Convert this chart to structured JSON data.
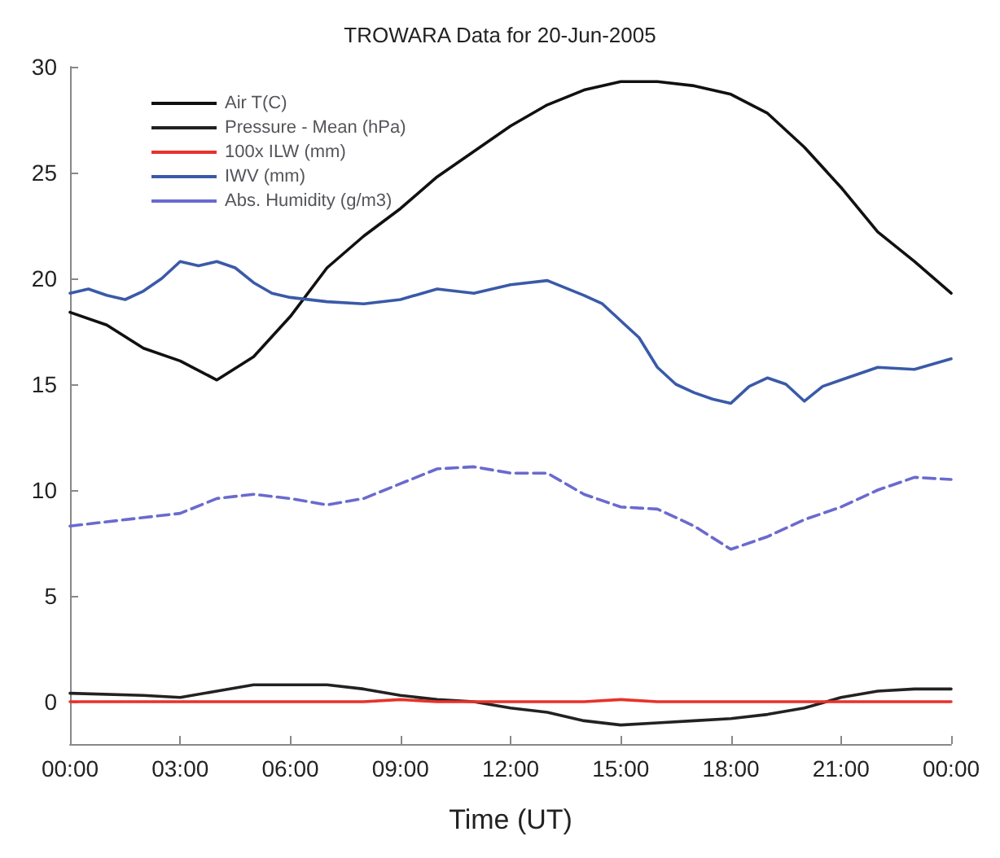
{
  "chart_data": {
    "type": "line",
    "title": "TROWARA Data for 20-Jun-2005",
    "xlabel": "Time (UT)",
    "xlim": [
      0,
      24
    ],
    "xticks": [
      {
        "value": 0,
        "label": "00:00"
      },
      {
        "value": 3,
        "label": "03:00"
      },
      {
        "value": 6,
        "label": "06:00"
      },
      {
        "value": 9,
        "label": "09:00"
      },
      {
        "value": 12,
        "label": "12:00"
      },
      {
        "value": 15,
        "label": "15:00"
      },
      {
        "value": 18,
        "label": "18:00"
      },
      {
        "value": 21,
        "label": "21:00"
      },
      {
        "value": 24,
        "label": "00:00"
      }
    ],
    "ylim": [
      -2,
      30
    ],
    "yticks": [
      0,
      5,
      10,
      15,
      20,
      25,
      30
    ],
    "grid": false,
    "legend": "top left",
    "marker": "none",
    "series": [
      {
        "name": "Air T(C)",
        "color": "#111111",
        "line_style": "solid",
        "x": [
          0,
          1,
          2,
          3,
          4,
          5,
          6,
          7,
          8,
          9,
          10,
          11,
          12,
          13,
          14,
          15,
          16,
          17,
          18,
          19,
          20,
          21,
          22,
          23,
          24
        ],
        "values": [
          18.4,
          17.8,
          16.7,
          16.1,
          15.2,
          16.3,
          18.2,
          20.5,
          22.0,
          23.3,
          24.8,
          26.0,
          27.2,
          28.2,
          28.9,
          29.3,
          29.3,
          29.1,
          28.7,
          27.8,
          26.2,
          24.3,
          22.2,
          20.8,
          19.3
        ]
      },
      {
        "name": "Pressure - Mean (hPa)",
        "color": "#222222",
        "line_style": "solid",
        "x": [
          0,
          2,
          3,
          4,
          5,
          6,
          7,
          8,
          9,
          10,
          11,
          12,
          13,
          14,
          15,
          16,
          17,
          18,
          19,
          20,
          21,
          22,
          23,
          24
        ],
        "values": [
          0.4,
          0.3,
          0.2,
          0.5,
          0.8,
          0.8,
          0.8,
          0.6,
          0.3,
          0.1,
          0,
          -0.3,
          -0.5,
          -0.9,
          -1.1,
          -1.0,
          -0.9,
          -0.8,
          -0.6,
          -0.3,
          0.2,
          0.5,
          0.6,
          0.6
        ]
      },
      {
        "name": "100x ILW (mm)",
        "color": "#e8322a",
        "line_style": "solid",
        "x": [
          0,
          2,
          4,
          6,
          8,
          9,
          10,
          12,
          14,
          15,
          16,
          18,
          20,
          22,
          24
        ],
        "values": [
          0,
          0,
          0,
          0,
          0,
          0.1,
          0,
          0,
          0,
          0.1,
          0,
          0,
          0,
          0,
          0
        ]
      },
      {
        "name": "IWV (mm)",
        "color": "#3a5aa8",
        "line_style": "solid",
        "x": [
          0,
          0.5,
          1,
          1.5,
          2,
          2.5,
          3,
          3.5,
          4,
          4.5,
          5,
          5.5,
          6,
          7,
          8,
          9,
          10,
          11,
          12,
          13,
          14,
          14.5,
          15,
          15.5,
          16,
          16.5,
          17,
          17.5,
          18,
          18.5,
          19,
          19.5,
          20,
          20.5,
          21,
          22,
          23,
          24
        ],
        "values": [
          19.3,
          19.5,
          19.2,
          19.0,
          19.4,
          20.0,
          20.8,
          20.6,
          20.8,
          20.5,
          19.8,
          19.3,
          19.1,
          18.9,
          18.8,
          19.0,
          19.5,
          19.3,
          19.7,
          19.9,
          19.2,
          18.8,
          18.0,
          17.2,
          15.8,
          15.0,
          14.6,
          14.3,
          14.1,
          14.9,
          15.3,
          15.0,
          14.2,
          14.9,
          15.2,
          15.8,
          15.7,
          16.2
        ]
      },
      {
        "name": "Abs. Humidity (g/m3)",
        "color": "#6a6acf",
        "line_style": "dashed",
        "x": [
          0,
          1,
          2,
          3,
          4,
          5,
          6,
          7,
          8,
          9,
          10,
          11,
          12,
          13,
          14,
          15,
          16,
          17,
          18,
          19,
          20,
          21,
          22,
          23,
          24
        ],
        "values": [
          8.3,
          8.5,
          8.7,
          8.9,
          9.6,
          9.8,
          9.6,
          9.3,
          9.6,
          10.3,
          11.0,
          11.1,
          10.8,
          10.8,
          9.8,
          9.2,
          9.1,
          8.3,
          7.2,
          7.8,
          8.6,
          9.2,
          10.0,
          10.6,
          10.5
        ]
      }
    ]
  }
}
